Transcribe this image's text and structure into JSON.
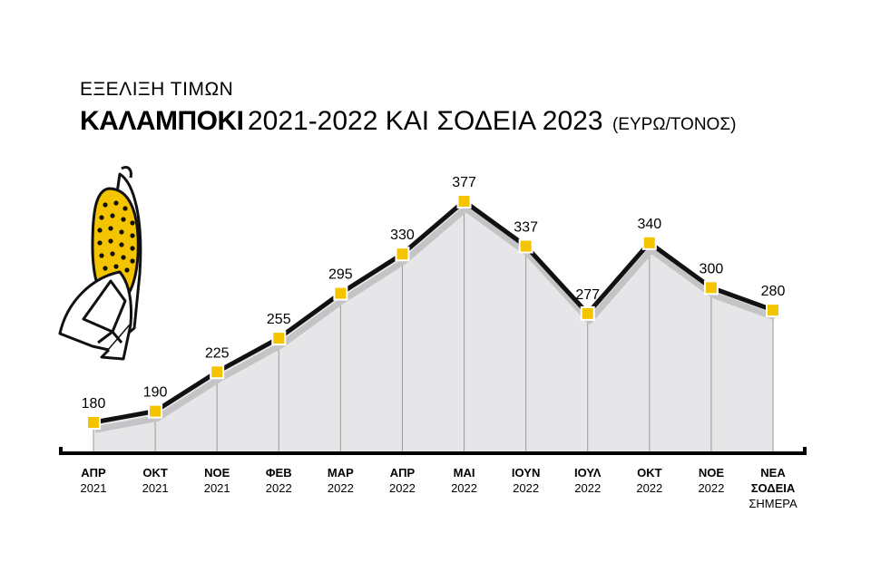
{
  "header": {
    "subtitle": "ΕΞΕΛΙΞΗ ΤΙΜΩΝ",
    "title_strong": "ΚΑΛΑΜΠΟΚΙ",
    "title_rest": "2021-2022 ΚΑΙ ΣΟΔΕΙΑ 2023",
    "title_unit": "(ΕΥΡΩ/ΤΟΝΟΣ)"
  },
  "colors": {
    "line": "#111111",
    "marker": "#f5c400",
    "area": "#e6e6e8",
    "shadow": "#c4c4c6",
    "guide": "#9a9a9a"
  },
  "icon": "corn-cob-icon",
  "chart_data": {
    "type": "line",
    "title": "ΚΑΛΑΜΠΟΚΙ 2021-2022 ΚΑΙ ΣΟΔΕΙΑ 2023 (ΕΥΡΩ/ΤΟΝΟΣ)",
    "categories": [
      [
        "ΑΠΡ",
        "2021"
      ],
      [
        "ΟΚΤ",
        "2021"
      ],
      [
        "ΝΟΕ",
        "2021"
      ],
      [
        "ΦΕΒ",
        "2022"
      ],
      [
        "ΜΑΡ",
        "2022"
      ],
      [
        "ΑΠΡ",
        "2022"
      ],
      [
        "ΜΑΙ",
        "2022"
      ],
      [
        "ΙΟΥΝ",
        "2022"
      ],
      [
        "ΙΟΥΛ",
        "2022"
      ],
      [
        "ΟΚΤ",
        "2022"
      ],
      [
        "ΝΟΕ",
        "2022"
      ],
      [
        "ΝΕΑ",
        "ΣΟΔΕΙΑ",
        "ΣΗΜΕΡΑ"
      ]
    ],
    "values": [
      180,
      190,
      225,
      255,
      295,
      330,
      377,
      337,
      277,
      340,
      300,
      280
    ],
    "ylim": [
      150,
      390
    ],
    "grid": false,
    "legend": "none",
    "xlabel": "",
    "ylabel": ""
  }
}
